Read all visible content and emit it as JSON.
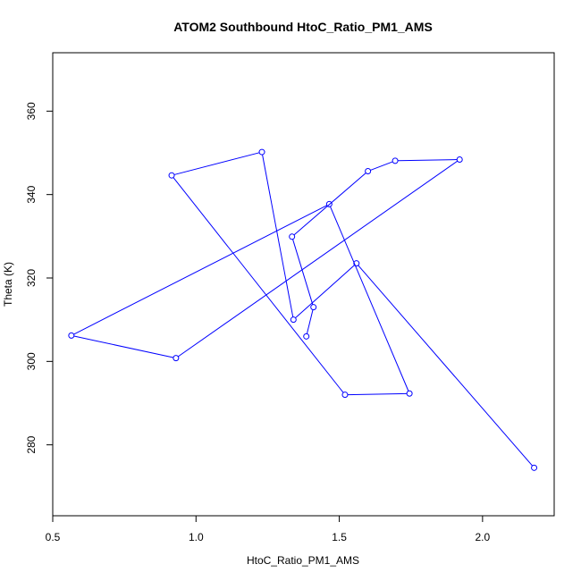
{
  "chart_data": {
    "type": "line",
    "title": "ATOM2 Southbound HtoC_Ratio_PM1_AMS",
    "xlabel": "HtoC_Ratio_PM1_AMS",
    "ylabel": "Theta (K)",
    "xlim": [
      0.5,
      2.25
    ],
    "ylim": [
      263,
      374
    ],
    "xticks": [
      0.5,
      1.0,
      1.5,
      2.0
    ],
    "xtick_labels": [
      "0.5",
      "1.0",
      "1.5",
      "2.0"
    ],
    "yticks": [
      280,
      300,
      320,
      340,
      360
    ],
    "ytick_labels": [
      "280",
      "300",
      "320",
      "340",
      "360"
    ],
    "grid": false,
    "series_color": "#0000ff",
    "marker": "open-circle",
    "points": [
      {
        "x": 2.18,
        "y": 274.5
      },
      {
        "x": 1.56,
        "y": 323.5
      },
      {
        "x": 1.34,
        "y": 310.0
      },
      {
        "x": 1.23,
        "y": 350.2
      },
      {
        "x": 0.915,
        "y": 344.6
      },
      {
        "x": 1.52,
        "y": 292.0
      },
      {
        "x": 1.745,
        "y": 292.3
      },
      {
        "x": 1.465,
        "y": 337.7
      },
      {
        "x": 0.565,
        "y": 306.2
      },
      {
        "x": 0.93,
        "y": 300.8
      },
      {
        "x": 1.92,
        "y": 348.4
      },
      {
        "x": 1.695,
        "y": 348.1
      },
      {
        "x": 1.6,
        "y": 345.6
      },
      {
        "x": 1.335,
        "y": 329.9
      },
      {
        "x": 1.41,
        "y": 313.0
      },
      {
        "x": 1.385,
        "y": 306.0
      }
    ]
  }
}
